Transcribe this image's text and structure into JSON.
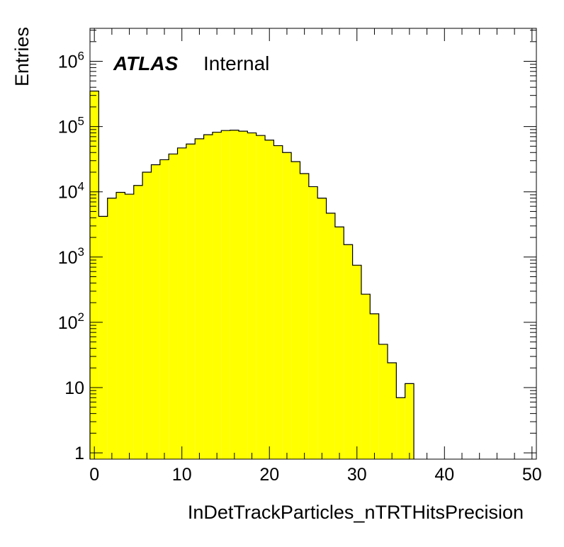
{
  "chart_data": {
    "type": "bar",
    "title": "",
    "xlabel": "InDetTrackParticles_nTRTHitsPrecision",
    "ylabel": "Entries",
    "xlim": [
      -0.5,
      50.5
    ],
    "ylim": [
      0.8,
      3200000
    ],
    "yscale": "log",
    "bin_width": 1,
    "bin_start": -0.5,
    "fill_color": "#ffff00",
    "line_color": "#000000",
    "values": [
      350000,
      4200,
      8000,
      9800,
      9200,
      12500,
      20000,
      26000,
      31000,
      38000,
      47000,
      54000,
      65000,
      75000,
      82000,
      87000,
      88000,
      85000,
      80000,
      73000,
      62000,
      51000,
      40000,
      29000,
      19000,
      12000,
      8000,
      4700,
      2900,
      1550,
      750,
      270,
      135,
      46,
      24,
      7,
      11.5
    ],
    "x_ticks": [
      "0",
      "10",
      "20",
      "30",
      "40",
      "50"
    ],
    "x_tick_values": [
      0,
      10,
      20,
      30,
      40,
      50
    ],
    "y_ticks": [
      {
        "value": 1,
        "base": "1",
        "exp": ""
      },
      {
        "value": 10,
        "base": "10",
        "exp": ""
      },
      {
        "value": 100,
        "base": "10",
        "exp": "2"
      },
      {
        "value": 1000,
        "base": "10",
        "exp": "3"
      },
      {
        "value": 10000,
        "base": "10",
        "exp": "4"
      },
      {
        "value": 100000,
        "base": "10",
        "exp": "5"
      },
      {
        "value": 1000000,
        "base": "10",
        "exp": "6"
      }
    ],
    "legend": {
      "experiment": "ATLAS",
      "status": "Internal"
    },
    "grid": false
  }
}
